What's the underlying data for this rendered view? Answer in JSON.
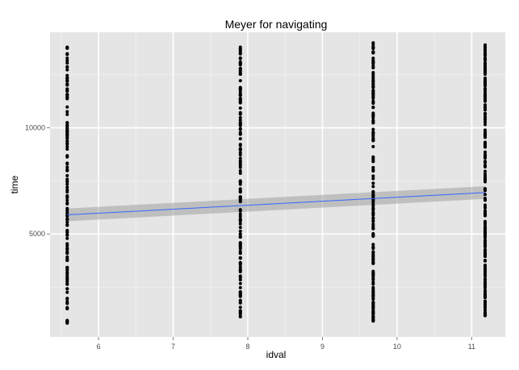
{
  "chart_data": {
    "type": "scatter",
    "title": "Meyer for navigating",
    "xlabel": "idval",
    "ylabel": "time",
    "xlim": [
      5.35,
      11.45
    ],
    "ylim": [
      150,
      14500
    ],
    "x_ticks": [
      6,
      7,
      8,
      9,
      10,
      11
    ],
    "y_ticks": [
      5000,
      10000
    ],
    "grid": true,
    "legend": "none",
    "colors": {
      "panel": "#e5e5e5",
      "grid_major": "#ffffff",
      "grid_minor": "#f2f2f2",
      "points": "#000000",
      "trend_line": "#3366ff",
      "confidence_band": "#999999"
    },
    "groups": [
      {
        "x": 5.58,
        "y_min": 800,
        "y_max": 13800,
        "n": 150
      },
      {
        "x": 7.9,
        "y_min": 1100,
        "y_max": 13800,
        "n": 160
      },
      {
        "x": 9.68,
        "y_min": 900,
        "y_max": 14000,
        "n": 180
      },
      {
        "x": 11.18,
        "y_min": 1150,
        "y_max": 13900,
        "n": 200
      }
    ],
    "trend": {
      "x": [
        5.58,
        11.18
      ],
      "y": [
        5900,
        6950
      ],
      "ci_lower": [
        5600,
        6650
      ],
      "ci_upper": [
        6200,
        7250
      ]
    }
  }
}
